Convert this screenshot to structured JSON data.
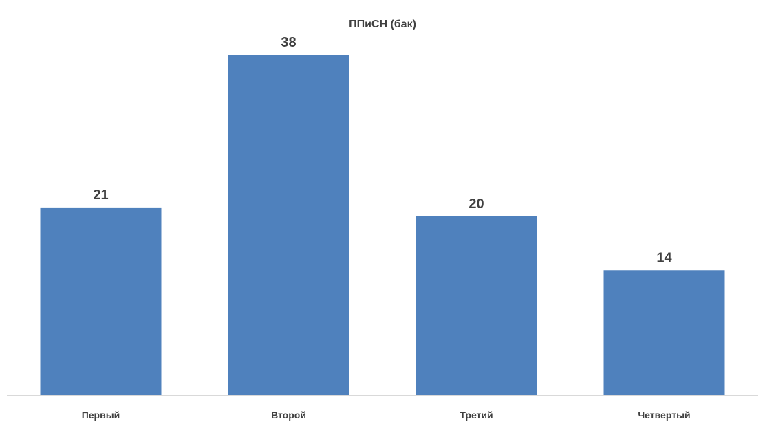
{
  "chart_data": {
    "type": "bar",
    "title": "ППиСН (бак)",
    "categories": [
      "Первый",
      "Второй",
      "Третий",
      "Четвертый"
    ],
    "values": [
      21,
      38,
      20,
      14
    ],
    "data_labels": [
      "21",
      "38",
      "20",
      "14"
    ],
    "ylim": [
      0,
      38
    ],
    "grid": false,
    "legend": "none",
    "bar_color": "#4F81BD",
    "axis_color": "#D9D9D9",
    "label_color": "#404040"
  }
}
